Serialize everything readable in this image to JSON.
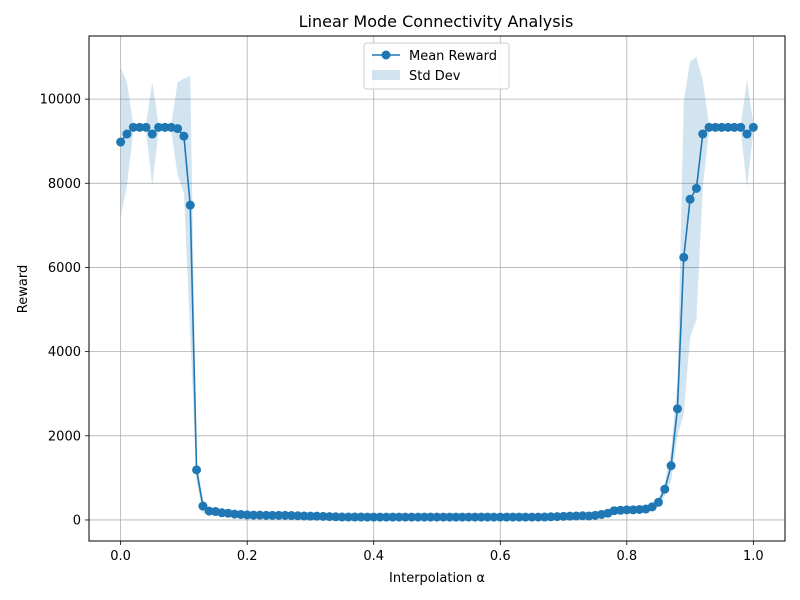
{
  "chart_data": {
    "type": "line",
    "title": "Linear Mode Connectivity Analysis",
    "xlabel": "Interpolation α",
    "ylabel": "Reward",
    "xlim": [
      -0.05,
      1.05
    ],
    "ylim": [
      -500,
      11500
    ],
    "xticks": [
      0.0,
      0.2,
      0.4,
      0.6,
      0.8,
      1.0
    ],
    "xtick_labels": [
      "0.0",
      "0.2",
      "0.4",
      "0.6",
      "0.8",
      "1.0"
    ],
    "yticks": [
      0,
      2000,
      4000,
      6000,
      8000,
      10000
    ],
    "ytick_labels": [
      "0",
      "2000",
      "4000",
      "6000",
      "8000",
      "10000"
    ],
    "grid": true,
    "legend_position": "top-center",
    "legend": [
      "Mean Reward",
      "Std Dev"
    ],
    "colors": {
      "line": "#1f77b4",
      "band": "#1f77b4"
    },
    "series": [
      {
        "name": "Mean Reward",
        "marker": "circle",
        "x": [
          0.0,
          0.01,
          0.02,
          0.03,
          0.04,
          0.05,
          0.06,
          0.07,
          0.08,
          0.09,
          0.1,
          0.11,
          0.12,
          0.13,
          0.14,
          0.15,
          0.16,
          0.17,
          0.18,
          0.19,
          0.2,
          0.21,
          0.22,
          0.23,
          0.24,
          0.25,
          0.26,
          0.27,
          0.28,
          0.29,
          0.3,
          0.31,
          0.32,
          0.33,
          0.34,
          0.35,
          0.36,
          0.37,
          0.38,
          0.39,
          0.4,
          0.41,
          0.42,
          0.43,
          0.44,
          0.45,
          0.46,
          0.47,
          0.48,
          0.49,
          0.5,
          0.51,
          0.52,
          0.53,
          0.54,
          0.55,
          0.56,
          0.57,
          0.58,
          0.59,
          0.6,
          0.61,
          0.62,
          0.63,
          0.64,
          0.65,
          0.66,
          0.67,
          0.68,
          0.69,
          0.7,
          0.71,
          0.72,
          0.73,
          0.74,
          0.75,
          0.76,
          0.77,
          0.78,
          0.79,
          0.8,
          0.81,
          0.82,
          0.83,
          0.84,
          0.85,
          0.86,
          0.87,
          0.88,
          0.89,
          0.9,
          0.91,
          0.92,
          0.93,
          0.94,
          0.95,
          0.96,
          0.97,
          0.98,
          0.99,
          1.0
        ],
        "y": [
          8980,
          9170,
          9330,
          9330,
          9330,
          9170,
          9330,
          9330,
          9330,
          9300,
          9120,
          7480,
          1190,
          330,
          210,
          200,
          170,
          160,
          140,
          130,
          120,
          115,
          115,
          110,
          110,
          110,
          110,
          105,
          100,
          95,
          90,
          90,
          85,
          80,
          75,
          70,
          70,
          70,
          70,
          68,
          68,
          68,
          68,
          68,
          68,
          68,
          68,
          68,
          68,
          68,
          68,
          68,
          68,
          68,
          68,
          68,
          68,
          68,
          68,
          68,
          68,
          68,
          68,
          68,
          68,
          68,
          68,
          70,
          75,
          80,
          85,
          90,
          95,
          100,
          95,
          110,
          130,
          160,
          220,
          230,
          240,
          240,
          250,
          260,
          310,
          420,
          730,
          1290,
          2640,
          6240,
          7620,
          7880,
          9170,
          9330,
          9330,
          9330,
          9330,
          9330,
          9330,
          9170,
          9330
        ]
      }
    ],
    "band": {
      "name": "Std Dev",
      "upper": [
        10750,
        10400,
        9400,
        9400,
        9400,
        10400,
        9400,
        9400,
        9400,
        10400,
        10480,
        10550,
        1450,
        500,
        300,
        260,
        240,
        220,
        200,
        180,
        170,
        160,
        160,
        150,
        150,
        150,
        150,
        145,
        140,
        135,
        130,
        130,
        120,
        110,
        100,
        95,
        95,
        95,
        95,
        92,
        92,
        92,
        92,
        92,
        92,
        92,
        92,
        92,
        92,
        92,
        92,
        92,
        92,
        92,
        92,
        92,
        92,
        92,
        92,
        92,
        92,
        92,
        92,
        92,
        92,
        92,
        92,
        95,
        100,
        105,
        110,
        115,
        120,
        125,
        120,
        135,
        160,
        200,
        270,
        285,
        300,
        300,
        320,
        340,
        390,
        520,
        880,
        1650,
        3300,
        9950,
        10900,
        11000,
        10450,
        9400,
        9400,
        9400,
        9400,
        9400,
        9400,
        10450,
        9400
      ],
      "lower": [
        7200,
        7950,
        9250,
        9250,
        9250,
        7950,
        9250,
        9250,
        9250,
        8200,
        7770,
        4400,
        930,
        160,
        120,
        140,
        100,
        100,
        80,
        80,
        70,
        70,
        70,
        70,
        70,
        70,
        70,
        65,
        60,
        55,
        50,
        50,
        50,
        50,
        50,
        45,
        45,
        45,
        45,
        44,
        44,
        44,
        44,
        44,
        44,
        44,
        44,
        44,
        44,
        44,
        44,
        44,
        44,
        44,
        44,
        44,
        44,
        44,
        44,
        44,
        44,
        44,
        44,
        44,
        44,
        44,
        44,
        45,
        50,
        55,
        60,
        65,
        70,
        75,
        70,
        85,
        100,
        120,
        170,
        175,
        180,
        180,
        180,
        180,
        230,
        320,
        580,
        930,
        1980,
        2530,
        4340,
        4760,
        7900,
        9250,
        9250,
        9250,
        9250,
        9250,
        9250,
        7900,
        9250
      ]
    }
  }
}
